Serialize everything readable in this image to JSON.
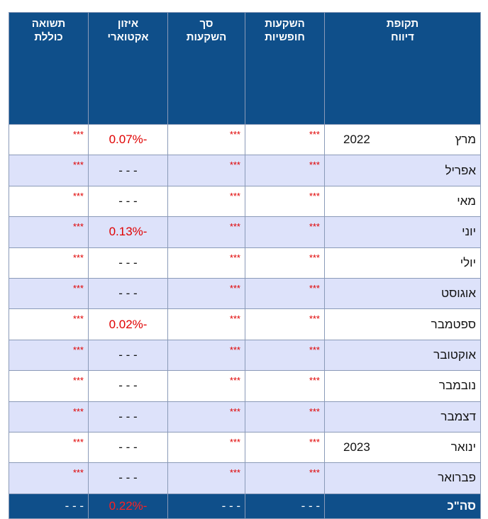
{
  "table": {
    "header": [
      "תקופת\nדיווח",
      "השקעות\nחופשיות",
      "סך\nהשקעות",
      "איזון\nאקטוארי",
      "תשואה\nכוללת"
    ],
    "rows": [
      {
        "period": "מרץ",
        "year": "2022",
        "free": "***",
        "total": "***",
        "actuarial": "-0.07%",
        "return": "***"
      },
      {
        "period": "אפריל",
        "free": "***",
        "total": "***",
        "actuarial": "- - -",
        "return": "***"
      },
      {
        "period": "מאי",
        "free": "***",
        "total": "***",
        "actuarial": "- - -",
        "return": "***"
      },
      {
        "period": "יוני",
        "free": "***",
        "total": "***",
        "actuarial": "-0.13%",
        "return": "***"
      },
      {
        "period": "יולי",
        "free": "***",
        "total": "***",
        "actuarial": "- - -",
        "return": "***"
      },
      {
        "period": "אוגוסט",
        "free": "***",
        "total": "***",
        "actuarial": "- - -",
        "return": "***"
      },
      {
        "period": "ספטמבר",
        "free": "***",
        "total": "***",
        "actuarial": "-0.02%",
        "return": "***"
      },
      {
        "period": "אוקטובר",
        "free": "***",
        "total": "***",
        "actuarial": "- - -",
        "return": "***"
      },
      {
        "period": "נובמבר",
        "free": "***",
        "total": "***",
        "actuarial": "- - -",
        "return": "***"
      },
      {
        "period": "דצמבר",
        "free": "***",
        "total": "***",
        "actuarial": "- - -",
        "return": "***"
      },
      {
        "period": "ינואר",
        "year": "2023",
        "free": "***",
        "total": "***",
        "actuarial": "- - -",
        "return": "***"
      },
      {
        "period": "פברואר",
        "free": "***",
        "total": "***",
        "actuarial": "- - -",
        "return": "***"
      }
    ],
    "total": {
      "period": "סה\"כ",
      "free": "- - -",
      "total": "- - -",
      "actuarial": "-0.22%",
      "return": "- - -"
    }
  }
}
